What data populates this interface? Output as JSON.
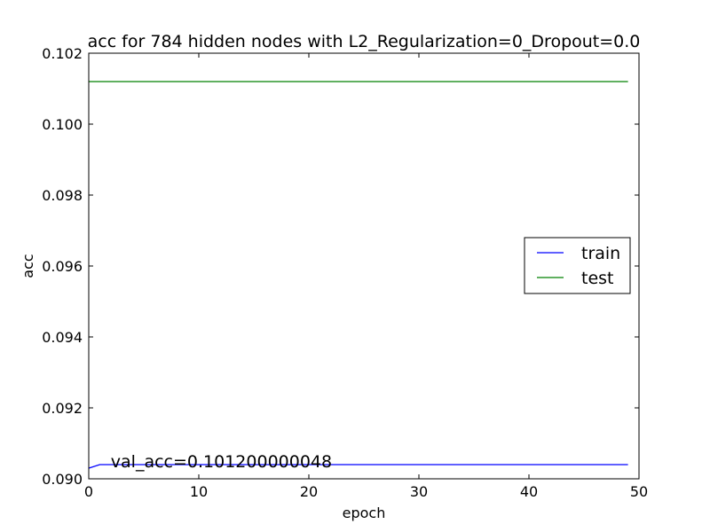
{
  "chart_data": {
    "type": "line",
    "title": "acc for 784 hidden nodes with L2_Regularization=0_Dropout=0.0",
    "xlabel": "epoch",
    "ylabel": "acc",
    "xlim": [
      0,
      50
    ],
    "ylim": [
      0.09,
      0.102
    ],
    "xticks": [
      0,
      10,
      20,
      30,
      40,
      50
    ],
    "xtick_labels": [
      "0",
      "10",
      "20",
      "30",
      "40",
      "50"
    ],
    "yticks": [
      0.09,
      0.092,
      0.094,
      0.096,
      0.098,
      0.1,
      0.102
    ],
    "ytick_labels": [
      "0.090",
      "0.092",
      "0.094",
      "0.096",
      "0.098",
      "0.100",
      "0.102"
    ],
    "grid": false,
    "legend_position": "center-right",
    "series": [
      {
        "name": "train",
        "color": "#0000ff",
        "x": [
          0,
          1,
          2,
          3,
          4,
          5,
          10,
          15,
          20,
          25,
          30,
          35,
          40,
          45,
          49
        ],
        "y": [
          0.0903,
          0.0904,
          0.0904,
          0.0904,
          0.0904,
          0.0904,
          0.0904,
          0.0904,
          0.0904,
          0.0904,
          0.0904,
          0.0904,
          0.0904,
          0.0904,
          0.0904
        ]
      },
      {
        "name": "test",
        "color": "#008000",
        "x": [
          0,
          49
        ],
        "y": [
          0.1012,
          0.1012
        ]
      }
    ],
    "annotations": [
      {
        "text": "val_acc=0.101200000048",
        "x": 2,
        "y": 0.0904
      }
    ]
  }
}
